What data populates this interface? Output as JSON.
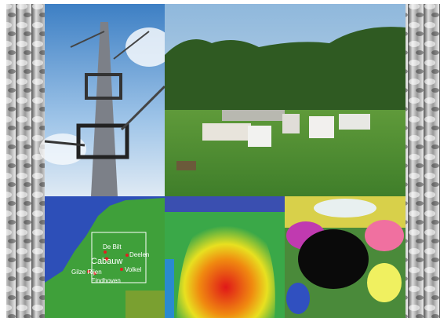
{
  "map": {
    "labels": [
      "De Bilt",
      "Cabauw",
      "Deelen",
      "Gilze Rijen",
      "Volkel",
      "Eindhoven"
    ]
  }
}
